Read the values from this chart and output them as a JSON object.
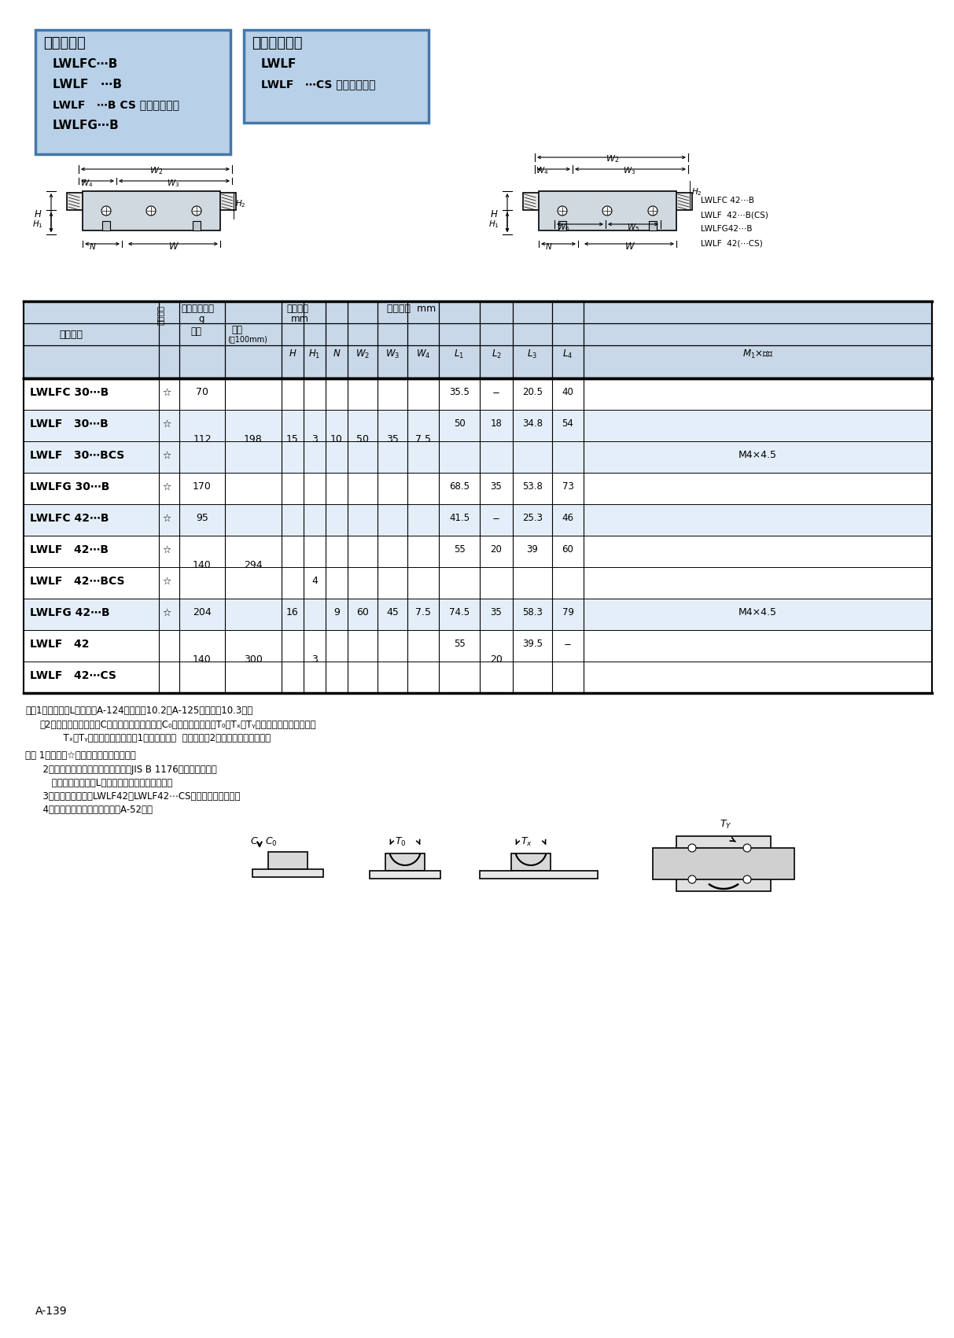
{
  "page_bg": "#ffffff",
  "left_box_color": "#b8d0e8",
  "right_box_color": "#b8d0e8",
  "left_box_title": "滚珠固定式",
  "left_box_lines": [
    "LWLFC⋯B",
    "LWLF   ⋯B",
    "LWLF   ⋯B CS （碳素钢制）",
    "LWLFG⋯B"
  ],
  "right_box_title": "滚珠非固定式",
  "right_box_lines": [
    "LWLF",
    "LWLF   ⋯CS （碳素钢制）"
  ],
  "table_header_bg": "#c8d8e8",
  "table_data_bg1": "#e4eef8",
  "table_data_bg2": "#ffffff",
  "rows": [
    {
      "name": "LWLFC 30⋯B",
      "star": true,
      "bg": "#ffffff"
    },
    {
      "name": "LWLF   30⋯B",
      "star": true,
      "bg": "#e4eef8"
    },
    {
      "name": "LWLF   30⋯BCS",
      "star": true,
      "bg": "#e4eef8"
    },
    {
      "name": "LWLFG 30⋯B",
      "star": true,
      "bg": "#ffffff"
    },
    {
      "name": "LWLFC 42⋯B",
      "star": true,
      "bg": "#e4eef8"
    },
    {
      "name": "LWLF   42⋯B",
      "star": true,
      "bg": "#ffffff"
    },
    {
      "name": "LWLF   42⋯BCS",
      "star": true,
      "bg": "#ffffff"
    },
    {
      "name": "LWLFG 42⋯B",
      "star": true,
      "bg": "#e4eef8"
    },
    {
      "name": "LWLF   42",
      "star": false,
      "bg": "#ffffff"
    },
    {
      "name": "LWLF   42⋯CS",
      "star": false,
      "bg": "#ffffff"
    }
  ],
  "note1": "注（1）滑轨长度L记载于第A-124页上的表10.2及A-125页上的表10.3中。",
  "note2": "（2）基本额定动负荷（C）、基本额定静负荷（C₀）、额定静力矩（T₀、Tₓ、Tᵧ）为下图的方向的数值。",
  "note3": "      Tₓ、Tᵧ的上面一行的数值是1个滑块的数值  下面一行是2个滑块贴紧时的数值。",
  "remark1": "备注 1．表中有☆号的备有自由组合规格。",
  "remark2": "      2．附带的滑轨安装用螺栓是相当于JIS B 1176的内六角螺栓。",
  "remark3": "         不锈钢制直线导轨L附带不锈钢制的螺栓或螺钉。",
  "remark4": "      3．滚珠非固定式（LWLF42、LWLF42⋯CS）不设油孔及脂嘴。",
  "remark5": "      4．油孔及脂嘴的规格请参照第A-52页。",
  "page_num": "A-139",
  "right_labels": [
    "LWLFC 42⋯B",
    "LWLF  42⋯B(CS)",
    "LWLFG42⋯B",
    "LWLF  42(⋯CS)"
  ]
}
